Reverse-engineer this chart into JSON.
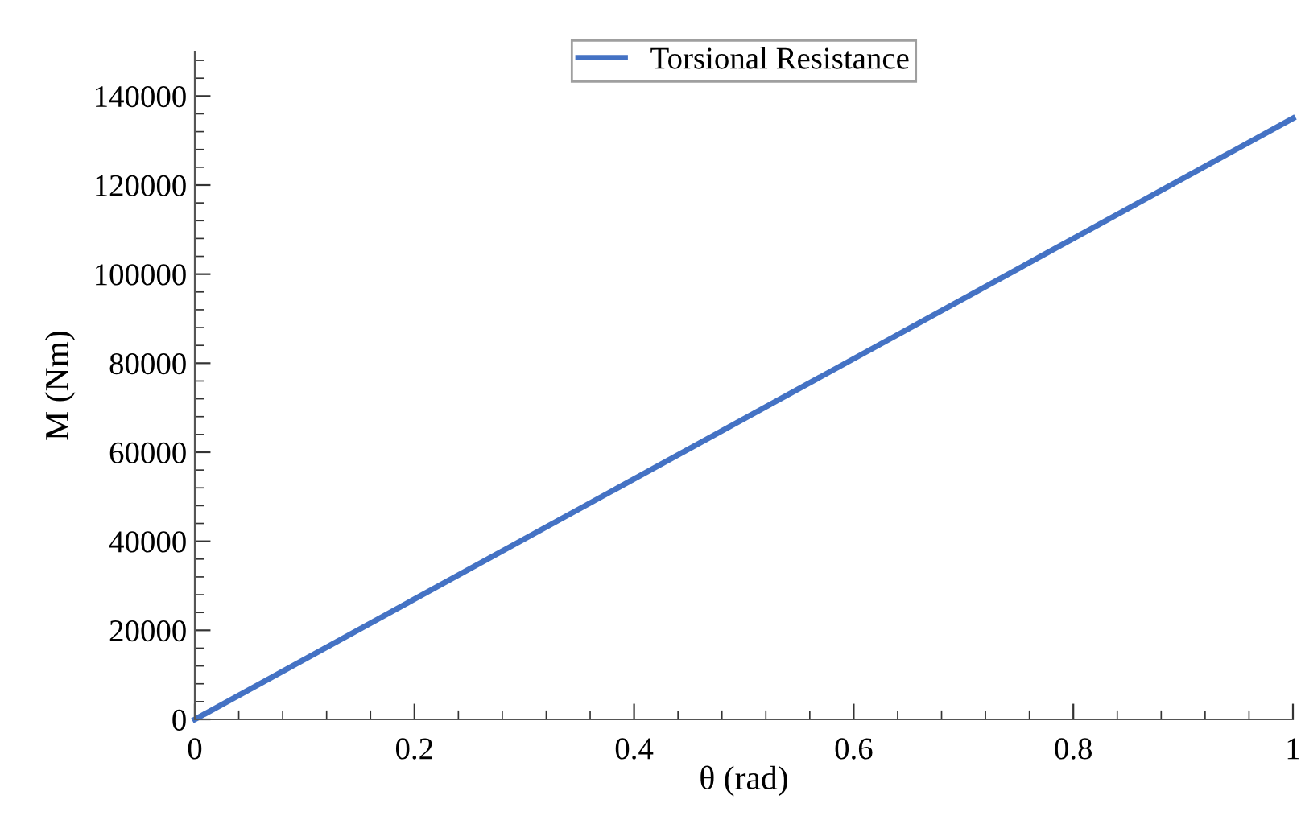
{
  "chart_data": {
    "type": "line",
    "xlabel": "θ (rad)",
    "ylabel": "M (Nm)",
    "x": [
      0,
      1
    ],
    "series": [
      {
        "name": "Torsional Resistance",
        "color": "#4472c4",
        "values": [
          0,
          135000
        ]
      }
    ],
    "xlim": [
      0,
      1
    ],
    "xticks": [
      0,
      0.2,
      0.4,
      0.6,
      0.8,
      1
    ],
    "ylim": [
      0,
      150000
    ],
    "yticks": [
      0,
      20000,
      40000,
      60000,
      80000,
      100000,
      120000,
      140000
    ],
    "grid": false,
    "legend": "top",
    "marker": "none",
    "line_style": "solid"
  }
}
